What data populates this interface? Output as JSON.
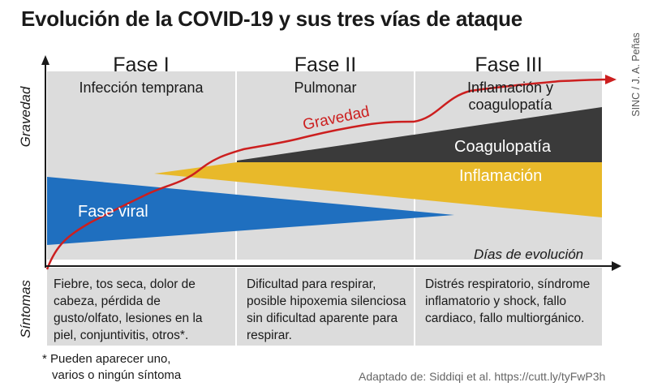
{
  "title": "Evolución de la COVID-19 y sus tres vías de ataque",
  "credit": "SINC / J. A. Peñas",
  "phases": [
    {
      "name": "Fase I",
      "subtitle": "Infección temprana"
    },
    {
      "name": "Fase II",
      "subtitle": "Pulmonar"
    },
    {
      "name": "Fase III",
      "subtitle": "Inflamación y coagulopatía"
    }
  ],
  "axes": {
    "y_label": "Gravedad",
    "x_label": "Días de evolución",
    "symptoms_label": "Síntomas"
  },
  "bands": {
    "viral": "Fase viral",
    "inflammation": "Inflamación",
    "coagulopathy": "Coagulopatía"
  },
  "severity_curve_label": "Gravedad",
  "symptoms": [
    "Fiebre, tos seca, dolor de cabeza, pérdida de gusto/olfato, lesiones en la piel, conjuntivitis, otros*.",
    "Dificultad para respirar, posible hipoxemia silenciosa sin dificultad aparente para respirar.",
    "Distrés respiratorio, síndrome inflamatorio y shock, fallo cardiaco, fallo multiorgánico."
  ],
  "footnote": {
    "line1": "* Pueden aparecer uno,",
    "line2": "varios o ningún síntoma"
  },
  "source": "Adaptado de: Siddiqi et al. https://cutt.ly/tyFwP3h",
  "colors": {
    "panel": "#dcdcdc",
    "viral": "#1f6fbf",
    "inflammation": "#e8b92a",
    "coagulopathy": "#3a3a3a",
    "severity": "#cc1f1f"
  }
}
